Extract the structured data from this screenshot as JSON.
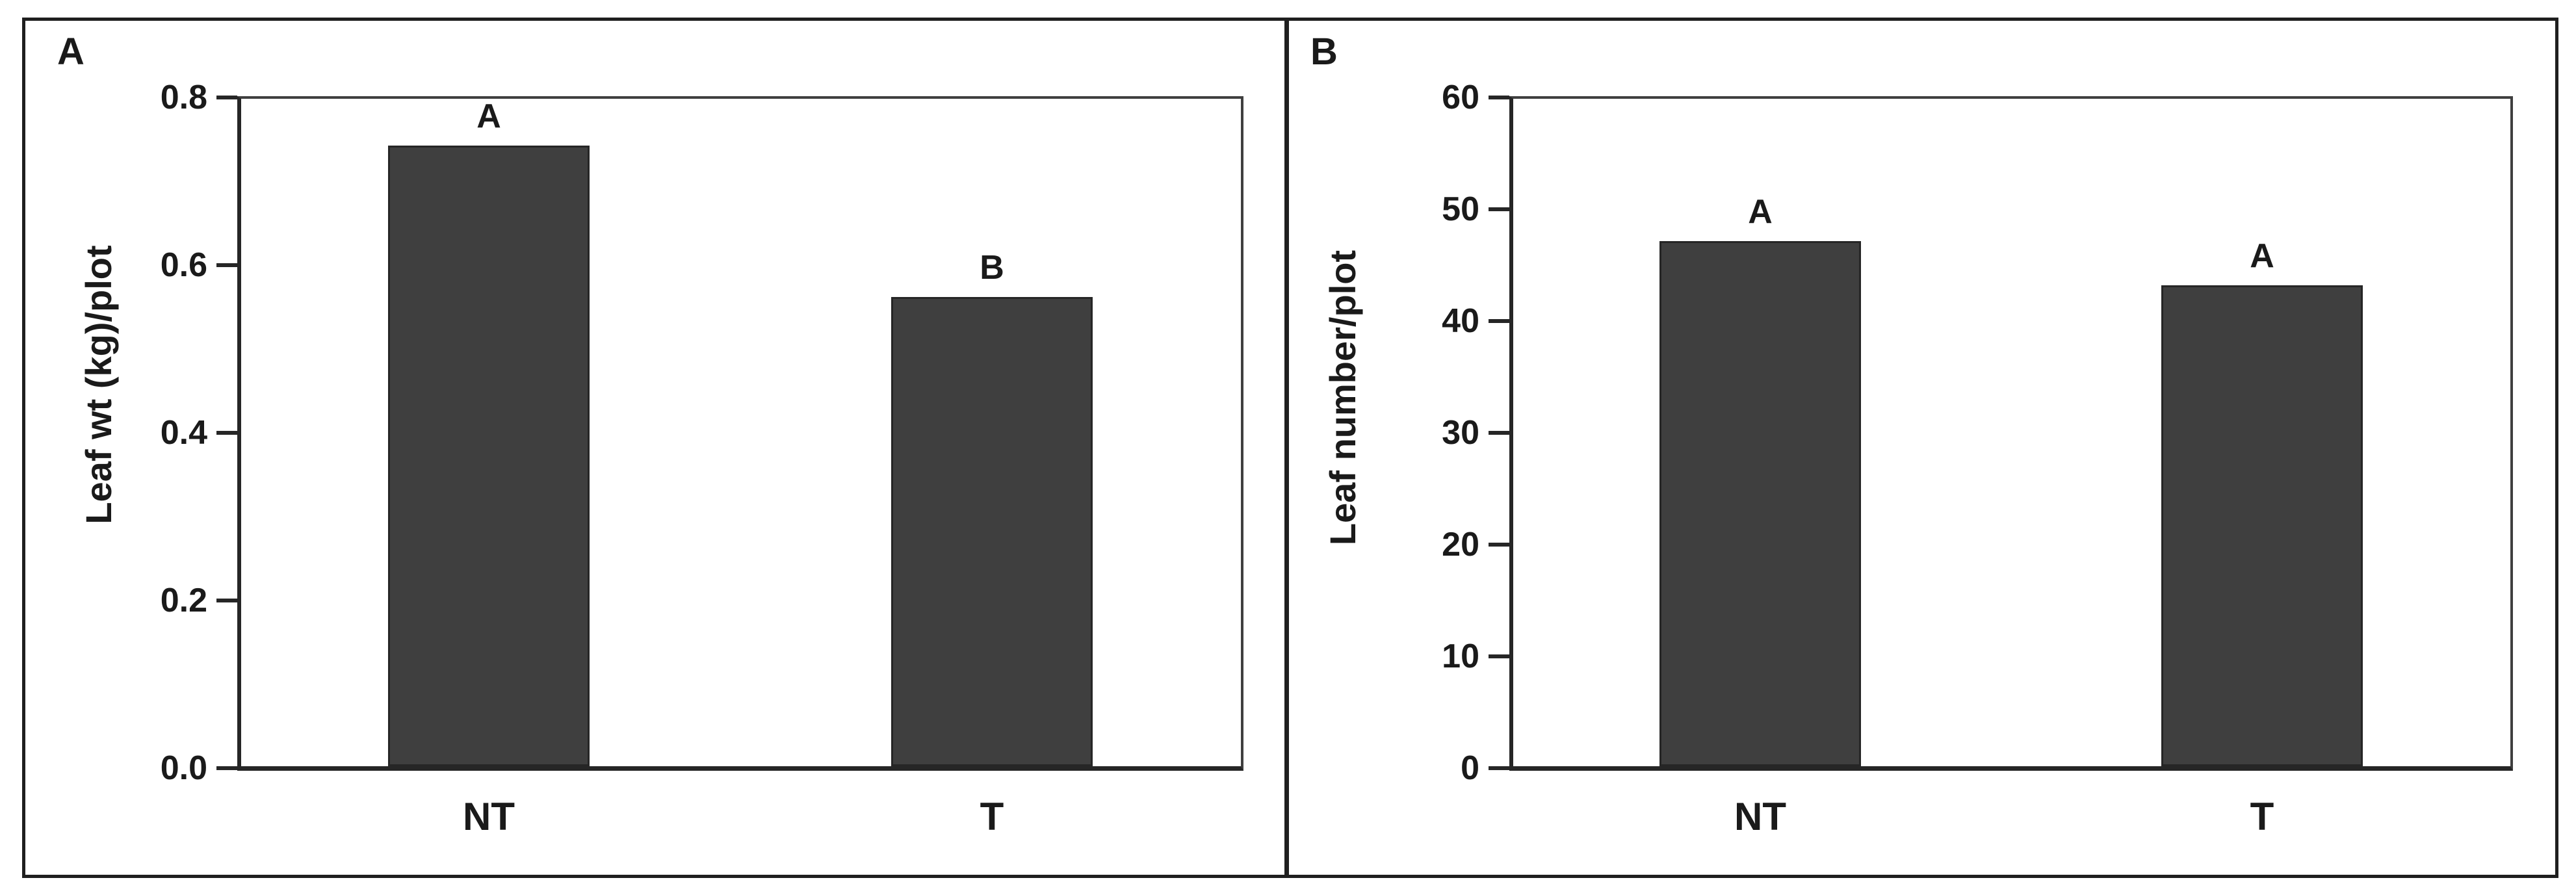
{
  "figure": {
    "background": "#ffffff",
    "border_color": "#1f1f1f",
    "axis_color": "#262626",
    "plot_frame_color": "#3f3f3f"
  },
  "chart_data": [
    {
      "type": "bar",
      "panel_label": "A",
      "ylabel": "Leaf wt (kg)/plot",
      "xlabel": "",
      "categories": [
        "NT",
        "T"
      ],
      "values": [
        0.74,
        0.56
      ],
      "bar_letters": [
        "A",
        "B"
      ],
      "ylim": [
        0,
        0.8
      ],
      "ytick_labels": [
        "0.0",
        "0.2",
        "0.4",
        "0.6",
        "0.8"
      ],
      "ytick_values": [
        0,
        0.2,
        0.4,
        0.6,
        0.8
      ],
      "bar_color": "#3f3f3f",
      "grid": "off",
      "legend": "none"
    },
    {
      "type": "bar",
      "panel_label": "B",
      "ylabel": "Leaf number/plot",
      "xlabel": "",
      "categories": [
        "NT",
        "T"
      ],
      "values": [
        47,
        43
      ],
      "bar_letters": [
        "A",
        "A"
      ],
      "ylim": [
        0,
        60
      ],
      "ytick_labels": [
        "0",
        "10",
        "20",
        "30",
        "40",
        "50",
        "60"
      ],
      "ytick_values": [
        0,
        10,
        20,
        30,
        40,
        50,
        60
      ],
      "bar_color": "#3f3f3f",
      "grid": "off",
      "legend": "none"
    }
  ]
}
